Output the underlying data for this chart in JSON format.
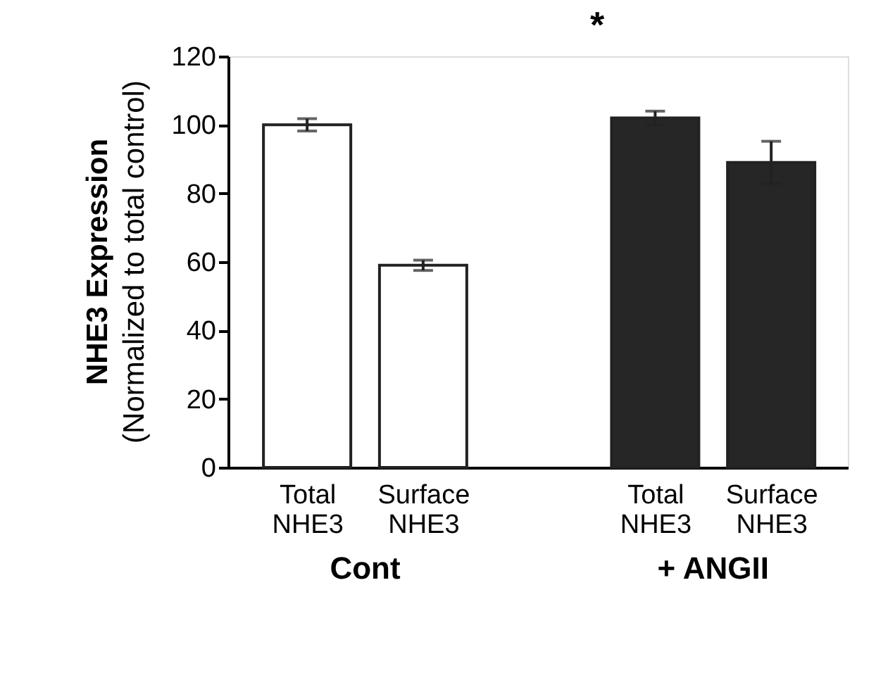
{
  "chart_data": {
    "type": "bar",
    "ylabel": "NHE3 Expression\n(Normalized to total control)",
    "categories": [
      "Total NHE3",
      "Surface NHE3",
      null,
      "Total NHE3",
      "Surface NHE3"
    ],
    "series": [
      {
        "values": [
          100,
          59,
          null,
          102,
          89
        ],
        "colors": [
          "#ffffff",
          "#ffffff",
          null,
          "#262626",
          "#262626"
        ],
        "errors": [
          1.8,
          1.5,
          null,
          2,
          6.2
        ]
      }
    ],
    "ylim": [
      0,
      120
    ],
    "yticks": [
      0,
      20,
      40,
      60,
      80,
      100,
      120
    ],
    "grid": false,
    "annotations": [
      "Cont",
      "+ ANGII",
      "*"
    ]
  }
}
